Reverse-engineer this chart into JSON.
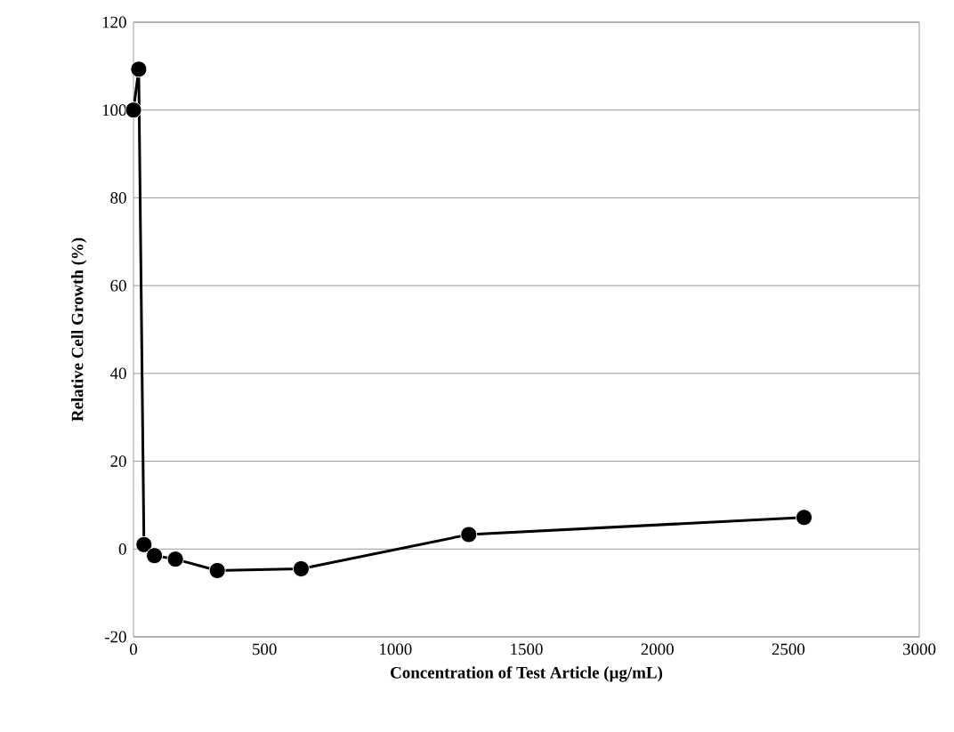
{
  "chart_data": {
    "type": "line",
    "xlabel": "Concentration of Test Article (µg/mL)",
    "ylabel": "Relative Cell Growth (%)",
    "x": [
      0,
      20,
      40,
      80,
      160,
      320,
      640,
      1280,
      2560
    ],
    "series": [
      {
        "color": "#000000",
        "values": [
          100,
          109.3,
          1.0,
          -1.5,
          -2.3,
          -4.9,
          -4.5,
          3.3,
          7.2
        ]
      }
    ],
    "xlim": [
      0,
      3000
    ],
    "xticks": [
      0,
      500,
      1000,
      1500,
      2000,
      2500,
      3000
    ],
    "ylim": [
      -20,
      120
    ],
    "yticks": [
      -20,
      0,
      20,
      40,
      60,
      80,
      100,
      120
    ],
    "grid": "y",
    "marker": "circle",
    "line_style": "solid"
  }
}
